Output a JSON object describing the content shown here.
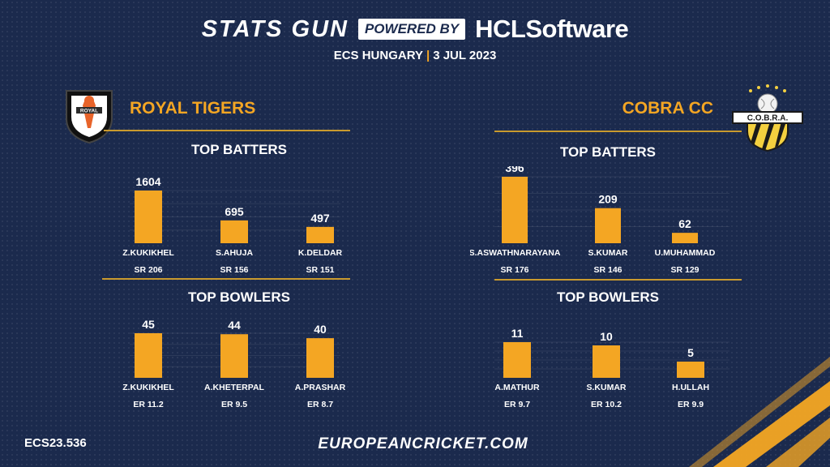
{
  "header": {
    "brand": "STATS GUN",
    "powered_by": "POWERED BY",
    "sponsor": "HCLSoftware",
    "event": "ECS HUNGARY",
    "separator": "|",
    "date": "3 JUL 2023"
  },
  "teams": {
    "left": {
      "name": "ROYAL TIGERS",
      "logo_text": "ROYAL"
    },
    "right": {
      "name": "COBRA CC",
      "logo_text": "C.O.B.R.A."
    }
  },
  "section_titles": {
    "batters": "TOP BATTERS",
    "bowlers": "TOP BOWLERS"
  },
  "footer": {
    "code": "ECS23.536",
    "website": "EUROPEANCRICKET.COM"
  },
  "colors": {
    "background": "#1b2a4d",
    "bar": "#f4a623",
    "accent": "#f4a623",
    "divider": "#c99a2e"
  },
  "chart_data": [
    {
      "type": "bar",
      "title": "TOP BATTERS",
      "team": "ROYAL TIGERS",
      "categories": [
        "Z.KUKIKHEL",
        "S.AHUJA",
        "K.DELDAR"
      ],
      "values": [
        1604,
        695,
        497
      ],
      "sublabels": [
        "SR 206",
        "SR 156",
        "SR 151"
      ],
      "ylim": [
        0,
        1604
      ]
    },
    {
      "type": "bar",
      "title": "TOP BOWLERS",
      "team": "ROYAL TIGERS",
      "categories": [
        "Z.KUKIKHEL",
        "A.KHETERPAL",
        "A.PRASHAR"
      ],
      "values": [
        45,
        44,
        40
      ],
      "sublabels": [
        "ER 11.2",
        "ER 9.5",
        "ER 8.7"
      ],
      "ylim": [
        0,
        45
      ]
    },
    {
      "type": "bar",
      "title": "TOP BATTERS",
      "team": "COBRA CC",
      "categories": [
        "S.ASWATHNARAYANA",
        "S.KUMAR",
        "U.MUHAMMAD"
      ],
      "values": [
        396,
        209,
        62
      ],
      "sublabels": [
        "SR 176",
        "SR 146",
        "SR 129"
      ],
      "ylim": [
        0,
        396
      ]
    },
    {
      "type": "bar",
      "title": "TOP BOWLERS",
      "team": "COBRA CC",
      "categories": [
        "A.MATHUR",
        "S.KUMAR",
        "H.ULLAH"
      ],
      "values": [
        11,
        10,
        5
      ],
      "sublabels": [
        "ER 9.7",
        "ER 10.2",
        "ER 9.9"
      ],
      "ylim": [
        0,
        11
      ]
    }
  ]
}
